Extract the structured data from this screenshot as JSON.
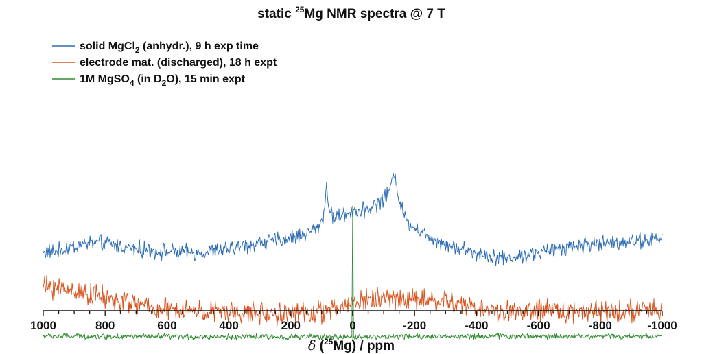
{
  "chart_data": {
    "type": "line",
    "title_parts": [
      "static ",
      "25",
      "Mg NMR spectra @ 7 T"
    ],
    "xlabel_parts": [
      "δ",
      " (",
      "25",
      "Mg) / ppm"
    ],
    "xlim": [
      1000,
      -1000
    ],
    "x_ticks": [
      1000,
      800,
      600,
      400,
      200,
      0,
      -200,
      -400,
      -600,
      -800,
      -1000
    ],
    "x_tick_labels": [
      "1000",
      "800",
      "600",
      "400",
      "200",
      "0",
      "-200",
      "-400",
      "-600",
      "-800",
      "-1000"
    ],
    "grid": false,
    "legend_position": "top-left",
    "series": [
      {
        "name_parts": [
          [
            "solid MgCl",
            ""
          ],
          [
            "2",
            "sub"
          ],
          [
            " (anhydr.), 9 h exp time",
            ""
          ]
        ],
        "color": "#2e6db4",
        "noise": 14,
        "x": [
          1000,
          950,
          900,
          850,
          800,
          700,
          600,
          500,
          400,
          300,
          200,
          150,
          110,
          95,
          88,
          84,
          80,
          75,
          60,
          30,
          0,
          -30,
          -70,
          -100,
          -120,
          -130,
          -135,
          -140,
          -150,
          -170,
          -200,
          -250,
          -300,
          -400,
          -450,
          -500,
          -550,
          -600,
          -700,
          -800,
          -900,
          -1000
        ],
        "values": [
          42,
          44,
          51,
          56,
          55,
          47,
          43,
          41,
          47,
          56,
          63,
          70,
          80,
          95,
          118,
          145,
          125,
          98,
          94,
          96,
          104,
          102,
          111,
          120,
          133,
          150,
          162,
          150,
          118,
          91,
          79,
          65,
          54,
          41,
          37,
          33,
          38,
          41,
          51,
          55,
          59,
          61
        ]
      },
      {
        "name_parts": [
          [
            "electrode mat. (discharged), 18 h expt",
            ""
          ]
        ],
        "color": "#d9531e",
        "noise": 20,
        "x": [
          1000,
          900,
          850,
          800,
          700,
          600,
          500,
          400,
          300,
          200,
          100,
          50,
          0,
          -100,
          -200,
          -300,
          -350,
          -400,
          -500,
          -600,
          -700,
          -800,
          -900,
          -1000
        ],
        "values": [
          -8,
          -12,
          -18,
          -25,
          -34,
          -42,
          -44,
          -46,
          -47,
          -47,
          -45,
          -41,
          -30,
          -24,
          -26,
          -30,
          -33,
          -41,
          -45,
          -44,
          -44,
          -43,
          -43,
          -44
        ]
      },
      {
        "name_parts": [
          [
            "1M MgSO",
            ""
          ],
          [
            "4",
            "sub"
          ],
          [
            " (in D",
            ""
          ],
          [
            "2",
            "sub"
          ],
          [
            "O), 15 min expt",
            ""
          ]
        ],
        "color": "#2f8a2f",
        "noise": 5,
        "peak_values": [
          0,
          110
        ],
        "x": [
          1000,
          500,
          0,
          -500,
          -1000
        ],
        "values": [
          -80,
          -81,
          -81,
          -80,
          -80
        ]
      }
    ]
  }
}
